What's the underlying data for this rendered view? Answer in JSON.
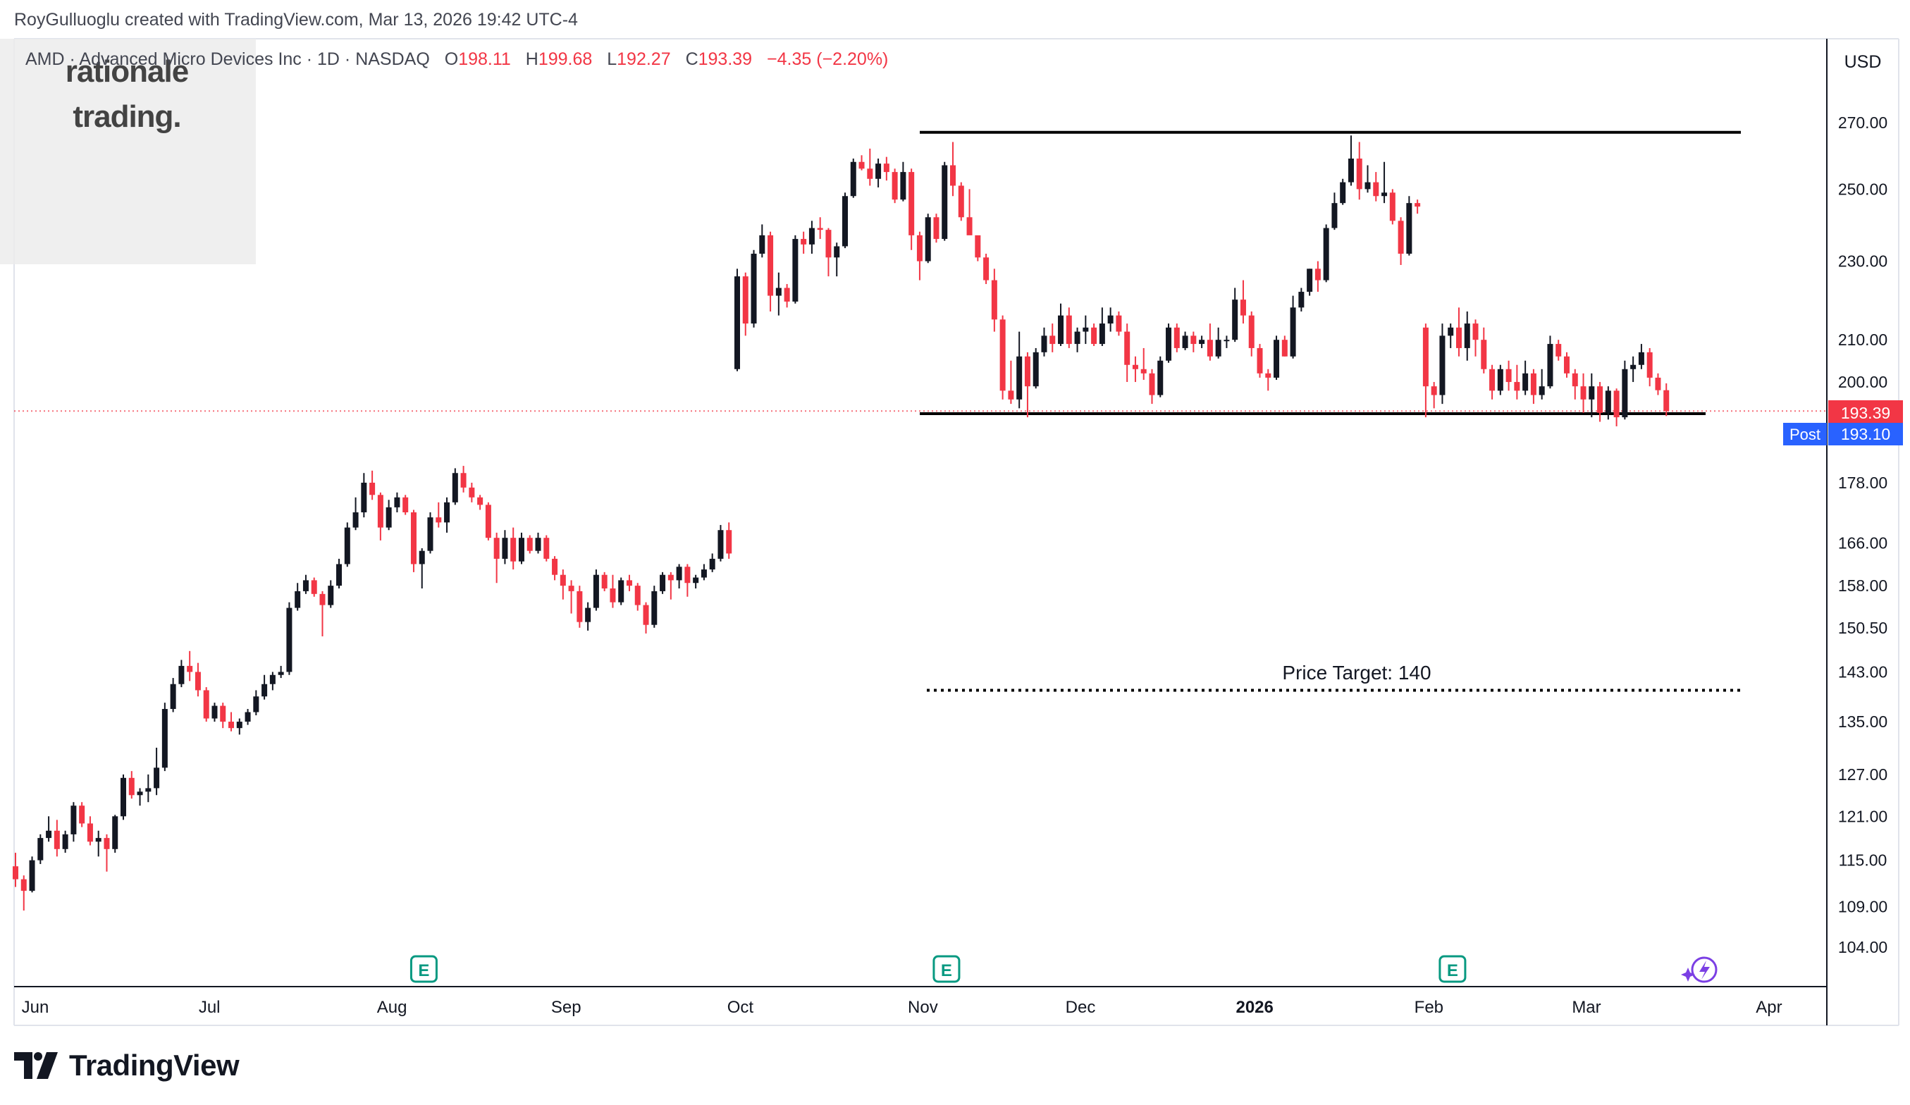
{
  "header": {
    "credit": "RoyGulluoglu created with TradingView.com, Mar 13, 2026 19:42 UTC-4"
  },
  "symbol": {
    "name": "AMD · Advanced Micro Devices Inc · 1D · NASDAQ",
    "open_label": "O",
    "open": "198.11",
    "high_label": "H",
    "high": "199.68",
    "low_label": "L",
    "low": "192.27",
    "close_label": "C",
    "close": "193.39",
    "change": "−4.35 (−2.20%)"
  },
  "watermark": {
    "line1": "rationale",
    "line2": "trading."
  },
  "currency": "USD",
  "price_tags": {
    "last": "193.39",
    "post_label": "Post",
    "post": "193.10"
  },
  "annotation": {
    "price_target": "Price Target: 140"
  },
  "logo": {
    "text": "TradingView"
  },
  "colors": {
    "up": "#131722",
    "down": "#f23645",
    "post_tag": "#2962ff",
    "last_tag": "#f23645",
    "earnings": "#089981",
    "sparkle": "#7b3fe4"
  },
  "chart_data": {
    "type": "candlestick",
    "scale": "log",
    "y_ticks": [
      270,
      250,
      230,
      210,
      200,
      178,
      166,
      158,
      150.5,
      143,
      135,
      127,
      121,
      115,
      109,
      104
    ],
    "y_tick_labels": [
      "270.00",
      "250.00",
      "230.00",
      "210.00",
      "200.00",
      "178.00",
      "166.00",
      "158.00",
      "150.50",
      "143.00",
      "135.00",
      "127.00",
      "121.00",
      "115.00",
      "109.00",
      "104.00"
    ],
    "x_labels": [
      "Jun",
      "Jul",
      "Aug",
      "Sep",
      "Oct",
      "Nov",
      "Dec",
      "2026",
      "Feb",
      "Mar",
      "Apr"
    ],
    "x_label_bar_index": [
      0,
      21,
      43,
      64,
      85,
      107,
      126,
      147,
      168,
      187,
      209
    ],
    "levels": {
      "resistance": 267,
      "support": 192.8,
      "price_target": 140
    },
    "earnings_bar_index": [
      46,
      109,
      170
    ],
    "last_price": 193.39,
    "post_price": 193.1,
    "ohlc": [
      [
        114.2,
        116,
        111.5,
        112.5
      ],
      [
        112.5,
        113,
        108.5,
        111
      ],
      [
        111,
        115.5,
        110.8,
        115
      ],
      [
        115,
        118.5,
        114.5,
        118
      ],
      [
        118,
        121,
        117.5,
        119
      ],
      [
        119,
        120.5,
        115.5,
        116.5
      ],
      [
        116.5,
        119,
        116,
        118.5
      ],
      [
        118.5,
        123,
        117.5,
        122.5
      ],
      [
        122.5,
        123,
        119.5,
        120
      ],
      [
        120,
        121,
        117,
        117.5
      ],
      [
        117.5,
        119,
        115.5,
        118
      ],
      [
        118,
        118.5,
        113.5,
        116.5
      ],
      [
        116.5,
        121.2,
        116,
        121
      ],
      [
        121,
        127,
        120.5,
        126.5
      ],
      [
        126.5,
        127.5,
        123.5,
        124
      ],
      [
        124,
        125,
        122.5,
        124.5
      ],
      [
        124.5,
        127,
        123,
        125
      ],
      [
        125,
        131,
        124,
        128
      ],
      [
        128,
        138,
        127.5,
        137
      ],
      [
        137,
        142,
        136.5,
        141
      ],
      [
        141,
        145,
        140.5,
        144
      ],
      [
        144,
        146.5,
        141.5,
        143
      ],
      [
        143,
        144.5,
        139,
        140
      ],
      [
        140,
        140.5,
        135,
        135.5
      ],
      [
        135.5,
        138,
        135,
        137.5
      ],
      [
        137.5,
        138,
        134,
        135
      ],
      [
        135,
        136.5,
        133.5,
        134
      ],
      [
        134,
        135.5,
        133,
        135
      ],
      [
        135,
        137,
        134.5,
        136.5
      ],
      [
        136.5,
        140,
        136,
        139
      ],
      [
        139,
        142.5,
        138.5,
        141
      ],
      [
        141,
        143,
        140,
        142.5
      ],
      [
        142.5,
        144,
        142,
        143
      ],
      [
        143,
        155,
        142.5,
        154
      ],
      [
        154,
        158.5,
        153.5,
        157
      ],
      [
        157,
        160,
        156.5,
        159
      ],
      [
        159,
        159.5,
        156,
        156.5
      ],
      [
        156.5,
        157,
        149,
        154.5
      ],
      [
        154.5,
        159,
        154,
        158
      ],
      [
        158,
        163,
        157.5,
        162
      ],
      [
        162,
        170,
        161.5,
        169
      ],
      [
        169,
        175,
        168.5,
        172
      ],
      [
        172,
        180,
        171,
        178
      ],
      [
        178,
        180.5,
        174.5,
        175.5
      ],
      [
        175.5,
        176,
        166.5,
        169
      ],
      [
        169,
        174.5,
        168.5,
        173
      ],
      [
        173,
        176,
        172,
        175
      ],
      [
        175,
        175.5,
        171.5,
        172
      ],
      [
        172,
        172.5,
        160.5,
        162
      ],
      [
        162,
        165,
        157.5,
        164.5
      ],
      [
        164.5,
        172,
        164,
        171
      ],
      [
        171,
        174,
        169,
        170
      ],
      [
        170,
        175,
        168,
        174
      ],
      [
        174,
        181,
        173.5,
        180
      ],
      [
        180,
        181.5,
        176,
        177
      ],
      [
        177,
        178,
        174,
        175
      ],
      [
        175,
        175.5,
        172.5,
        173.5
      ],
      [
        173.5,
        174,
        166.5,
        167
      ],
      [
        167,
        168,
        158.5,
        163
      ],
      [
        163,
        168.5,
        162,
        167
      ],
      [
        167,
        169,
        161,
        162.5
      ],
      [
        162.5,
        168,
        162,
        167
      ],
      [
        167,
        167.5,
        164,
        164.5
      ],
      [
        164.5,
        168,
        164,
        167
      ],
      [
        167,
        167.5,
        162.5,
        163
      ],
      [
        163,
        163.5,
        159,
        160
      ],
      [
        160,
        161,
        155.5,
        158
      ],
      [
        158,
        159,
        153,
        157
      ],
      [
        157,
        158,
        150.5,
        151.5
      ],
      [
        151.5,
        155,
        150,
        154
      ],
      [
        154,
        161,
        153.5,
        160
      ],
      [
        160,
        160.5,
        157,
        157.5
      ],
      [
        157.5,
        160,
        154,
        155
      ],
      [
        155,
        159.5,
        154.5,
        159
      ],
      [
        159,
        160,
        157,
        158
      ],
      [
        158,
        158.5,
        153.5,
        154.5
      ],
      [
        154.5,
        155,
        149.5,
        151
      ],
      [
        151,
        158,
        150.5,
        157
      ],
      [
        157,
        160.5,
        156.5,
        160
      ],
      [
        160,
        160.5,
        155.5,
        159
      ],
      [
        159,
        162,
        157.5,
        161.5
      ],
      [
        161.5,
        162,
        156,
        158.5
      ],
      [
        158.5,
        160,
        157.5,
        159.5
      ],
      [
        159.5,
        162,
        159,
        161
      ],
      [
        161,
        164,
        160.5,
        163
      ],
      [
        163,
        169.5,
        162.5,
        168.5
      ],
      [
        168.5,
        170,
        163,
        164
      ],
      [
        203,
        228,
        202.5,
        226
      ],
      [
        226,
        227,
        211,
        214
      ],
      [
        214,
        233,
        213,
        232
      ],
      [
        232,
        240,
        231,
        237
      ],
      [
        237,
        238,
        217,
        221
      ],
      [
        221,
        227,
        216,
        223
      ],
      [
        223,
        224,
        218,
        219.5
      ],
      [
        219.5,
        237,
        219,
        236
      ],
      [
        236,
        238,
        232,
        234.5
      ],
      [
        234.5,
        241,
        232,
        239
      ],
      [
        239,
        242,
        236,
        238.5
      ],
      [
        238.5,
        239,
        226,
        231
      ],
      [
        231,
        235,
        226,
        234
      ],
      [
        234,
        249,
        233.5,
        248
      ],
      [
        248,
        259,
        247.5,
        258
      ],
      [
        258,
        260,
        255.5,
        256
      ],
      [
        256,
        262,
        251,
        253
      ],
      [
        253,
        259,
        250.5,
        257.5
      ],
      [
        257.5,
        259.5,
        252.5,
        255
      ],
      [
        255,
        256,
        246,
        247
      ],
      [
        247,
        258,
        246.5,
        255
      ],
      [
        255,
        256,
        233,
        237
      ],
      [
        237,
        238,
        225,
        230
      ],
      [
        230,
        243,
        229.5,
        242
      ],
      [
        242,
        243,
        235,
        236
      ],
      [
        236,
        258,
        235.5,
        257
      ],
      [
        257,
        264,
        248,
        251
      ],
      [
        251,
        252,
        241,
        242
      ],
      [
        242,
        250,
        238,
        237
      ],
      [
        237,
        236,
        230,
        231
      ],
      [
        231,
        232,
        224,
        225
      ],
      [
        225,
        228,
        212,
        215
      ],
      [
        215,
        216,
        196,
        198
      ],
      [
        198,
        205,
        195,
        196
      ],
      [
        196,
        212,
        194,
        206
      ],
      [
        206,
        207,
        192,
        199
      ],
      [
        199,
        208,
        198.5,
        207
      ],
      [
        207,
        213,
        206,
        211
      ],
      [
        211,
        214,
        207,
        209
      ],
      [
        209,
        219,
        208.5,
        216
      ],
      [
        216,
        218,
        208,
        209
      ],
      [
        209,
        213,
        207,
        212
      ],
      [
        212,
        216,
        209,
        213
      ],
      [
        213,
        214,
        208.5,
        209
      ],
      [
        209,
        218,
        208.5,
        214
      ],
      [
        214,
        218,
        212,
        216
      ],
      [
        216,
        217,
        211,
        212
      ],
      [
        212,
        214,
        200,
        204
      ],
      [
        204,
        206,
        200,
        203
      ],
      [
        203,
        208,
        200.5,
        202
      ],
      [
        202,
        203,
        195,
        197
      ],
      [
        197,
        206,
        196.5,
        205
      ],
      [
        205,
        214,
        204.5,
        213
      ],
      [
        213,
        214,
        207,
        208
      ],
      [
        208,
        212,
        207.5,
        211
      ],
      [
        211,
        212,
        207,
        209
      ],
      [
        209,
        211,
        208,
        210
      ],
      [
        210,
        214,
        205,
        206
      ],
      [
        206,
        213,
        205.5,
        210
      ],
      [
        210,
        211,
        208,
        210
      ],
      [
        210,
        223,
        209.5,
        220
      ],
      [
        220,
        225,
        214,
        216
      ],
      [
        216,
        217,
        206,
        208
      ],
      [
        208,
        209,
        201,
        202
      ],
      [
        202,
        203,
        198,
        201
      ],
      [
        201,
        211,
        200.5,
        210
      ],
      [
        210,
        211,
        206,
        206
      ],
      [
        206,
        221,
        205.5,
        218
      ],
      [
        218,
        223,
        217,
        222
      ],
      [
        222,
        228,
        221,
        228
      ],
      [
        228,
        230,
        222,
        225
      ],
      [
        225,
        240,
        224.5,
        239
      ],
      [
        239,
        249,
        238.5,
        246
      ],
      [
        246,
        253,
        245.5,
        252
      ],
      [
        252,
        266,
        251,
        259
      ],
      [
        259,
        264,
        247,
        250
      ],
      [
        250,
        257,
        249,
        252
      ],
      [
        252,
        255,
        246.5,
        248
      ],
      [
        248,
        258,
        246,
        249
      ],
      [
        249,
        250,
        240,
        241
      ],
      [
        241,
        242,
        229,
        232
      ],
      [
        232,
        248,
        231.5,
        246
      ],
      [
        246,
        247,
        243,
        245
      ],
      [
        213,
        214,
        192,
        199
      ],
      [
        199,
        200,
        194,
        197
      ],
      [
        197,
        214,
        195,
        211
      ],
      [
        211,
        214,
        208,
        213
      ],
      [
        213,
        218,
        206,
        208
      ],
      [
        208,
        217,
        205,
        214
      ],
      [
        214,
        215,
        206,
        210
      ],
      [
        210,
        213,
        202,
        203
      ],
      [
        203,
        204,
        196,
        198
      ],
      [
        198,
        204,
        197,
        203
      ],
      [
        203,
        205,
        198,
        200
      ],
      [
        200,
        204,
        196,
        198
      ],
      [
        198,
        205,
        197,
        202
      ],
      [
        202,
        203,
        195,
        197
      ],
      [
        197,
        203,
        196,
        199
      ],
      [
        199,
        211,
        198.5,
        209
      ],
      [
        209,
        210,
        205,
        206
      ],
      [
        206,
        207,
        201,
        202
      ],
      [
        202,
        203,
        196,
        199
      ],
      [
        199,
        202,
        193,
        196
      ],
      [
        196,
        202,
        192,
        199
      ],
      [
        199,
        200,
        191,
        193
      ],
      [
        193,
        199,
        191.5,
        198
      ],
      [
        198,
        198.5,
        190,
        192
      ],
      [
        192,
        205,
        191.5,
        203
      ],
      [
        203,
        206,
        200,
        204
      ],
      [
        204,
        209,
        203,
        207
      ],
      [
        207,
        208,
        199,
        201
      ],
      [
        201,
        202,
        197,
        198.11
      ],
      [
        198.11,
        199.68,
        192.27,
        193.39
      ]
    ]
  }
}
